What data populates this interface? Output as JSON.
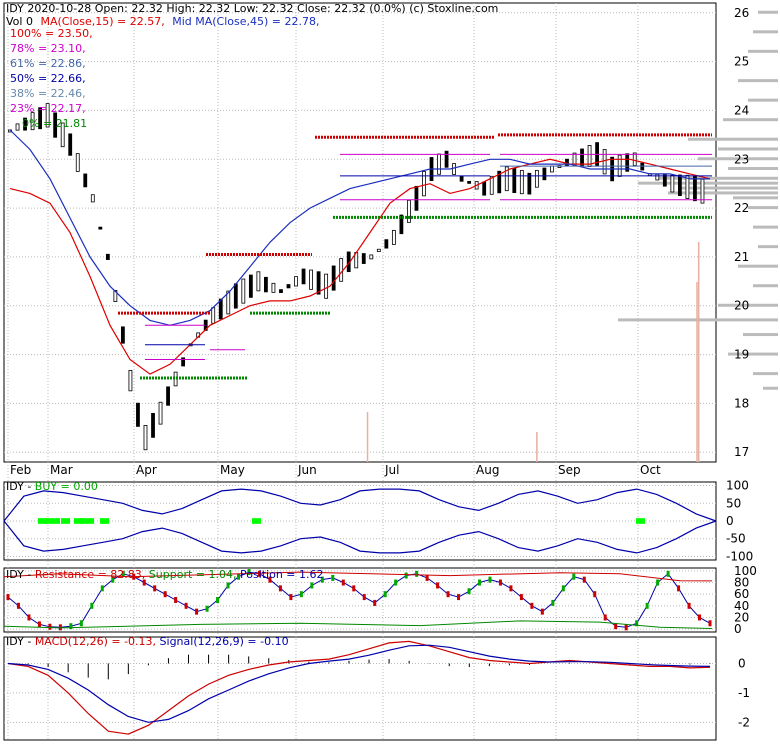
{
  "colors": {
    "background": "#ffffff",
    "grid": "#bbbbbb",
    "price": "#000000",
    "ma_short": "#dd0000",
    "ma_mid": "#1a2fbf",
    "resistance": "#cc0000",
    "support": "#008800",
    "fib_pink": "#cc00cc",
    "fib_blue": "#0000aa",
    "volume": "#e8b0a0",
    "macd": "#cc0000",
    "signal": "#0000aa",
    "buy": "#00ff00",
    "volume_profile": "#bbbbbb"
  },
  "header": {
    "line1": "IDY  2020-10-28 Open: 22.32  High: 22.32  Low: 22.32  Close: 22.32 (0.0%)  (c) Stoxline.com",
    "vol_prefix": "Vol 0",
    "ma_short_label": "MA(Close,15) = 22.57,",
    "ma_mid_label": "Mid MA(Close,45) = 22.78,"
  },
  "fib_levels": [
    {
      "label": "100% = 23.50,",
      "color": "#dd0000"
    },
    {
      "label": "78% = 23.10,",
      "color": "#cc00cc"
    },
    {
      "label": "61% = 22.86,",
      "color": "#4466aa"
    },
    {
      "label": "50% = 22.66,",
      "color": "#0000aa"
    },
    {
      "label": "38% = 22.46,",
      "color": "#6688aa"
    },
    {
      "label": "23% = 22.17,",
      "color": "#cc00cc"
    },
    {
      "label": "0% = 21.81",
      "color": "#008800"
    }
  ],
  "months": [
    "Feb",
    "Mar",
    "Apr",
    "May",
    "Jun",
    "Jul",
    "Aug",
    "Sep",
    "Oct"
  ],
  "chart_data": [
    {
      "type": "line",
      "panel": "price",
      "y_ticks": [
        17,
        18,
        19,
        20,
        21,
        22,
        23,
        24,
        25,
        26
      ],
      "ylim": [
        16.8,
        26.2
      ],
      "series": [
        {
          "name": "MA(Close,15)",
          "values": [
            22.4,
            22.3,
            22.1,
            21.5,
            20.6,
            19.6,
            18.9,
            18.6,
            18.8,
            19.2,
            19.6,
            19.8,
            20.0,
            20.1,
            20.1,
            20.2,
            20.4,
            20.9,
            21.5,
            22.1,
            22.4,
            22.5,
            22.3,
            22.4,
            22.6,
            22.8,
            22.9,
            23.0,
            22.9,
            22.9,
            23.0,
            23.0,
            22.9,
            22.8,
            22.7,
            22.6
          ]
        },
        {
          "name": "Mid MA(Close,45)",
          "values": [
            23.6,
            23.2,
            22.6,
            21.8,
            21.0,
            20.4,
            20.0,
            19.7,
            19.6,
            19.7,
            19.9,
            20.3,
            20.8,
            21.3,
            21.7,
            22.0,
            22.2,
            22.4,
            22.5,
            22.6,
            22.7,
            22.8,
            22.8,
            22.9,
            23.0,
            23.0,
            22.9,
            22.9,
            22.9,
            22.8,
            22.8,
            22.8,
            22.7,
            22.7,
            22.6,
            22.6
          ]
        }
      ]
    },
    {
      "type": "line",
      "panel": "buy",
      "title": "BUY = 0.00",
      "y_ticks": [
        100,
        50,
        0,
        -50,
        -100
      ],
      "ylim": [
        -110,
        110
      ]
    },
    {
      "type": "line",
      "panel": "resistance",
      "y_ticks": [
        100,
        80,
        60,
        40,
        20,
        0
      ],
      "ylim": [
        -5,
        105
      ],
      "series": [
        {
          "name": "Resistance",
          "label": "Resistance = 82.83,",
          "color": "#cc0000"
        },
        {
          "name": "Support",
          "label": "Support = 1.04,",
          "color": "#008800"
        },
        {
          "name": "Position",
          "label": "Position = 1.62",
          "color": "#0000aa"
        }
      ]
    },
    {
      "type": "line",
      "panel": "macd",
      "y_ticks": [
        0,
        -1,
        -2
      ],
      "ylim": [
        -2.6,
        0.9
      ],
      "series": [
        {
          "name": "MACD(12,26)",
          "label": "MACD(12,26) = -0.13,",
          "color": "#cc0000"
        },
        {
          "name": "Signal(12,26,9)",
          "label": "Signal(12,26,9) = -0.10",
          "color": "#0000aa"
        }
      ]
    }
  ],
  "panel_prefix": "IDY -"
}
